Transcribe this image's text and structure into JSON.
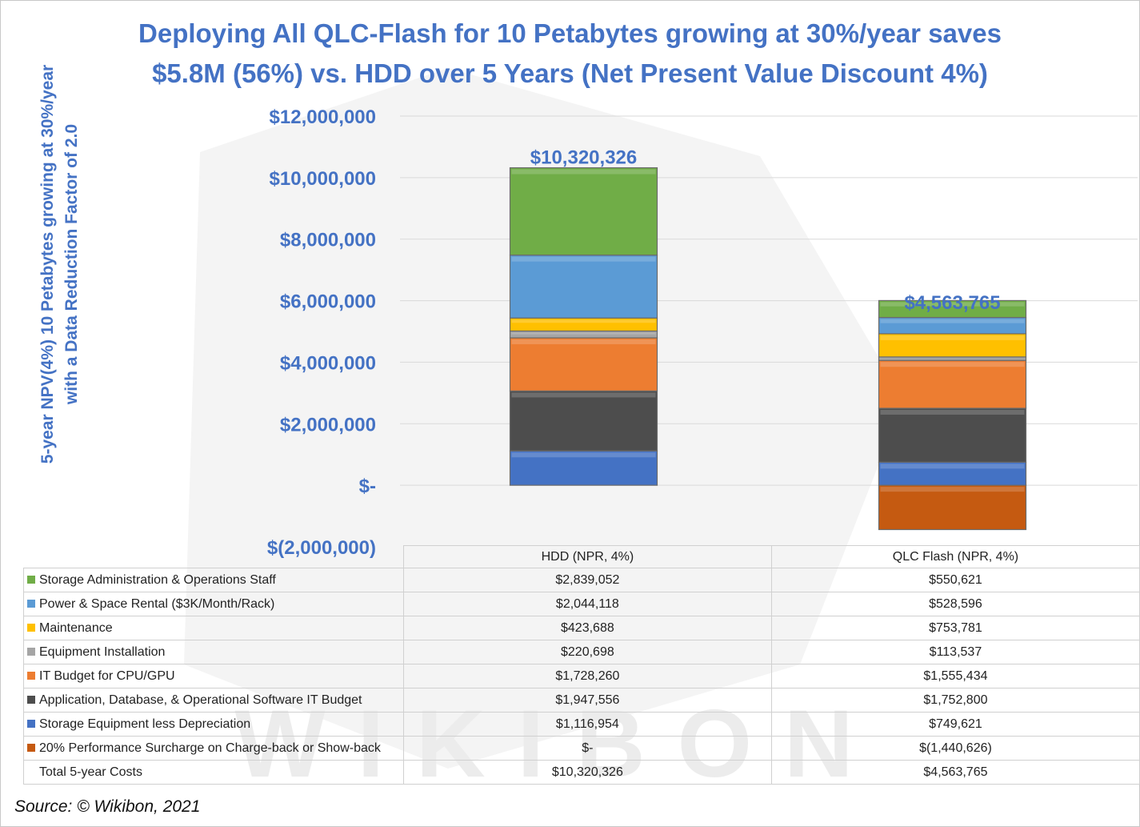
{
  "title_line1": "Deploying All QLC-Flash for 10 Petabytes growing at 30%/year saves",
  "title_line2": "$5.8M (56%) vs. HDD over 5 Years  (Net Present Value Discount 4%)",
  "source": "Source: © Wikibon, 2021",
  "watermark_text": "WIKIBON",
  "chart_data": {
    "type": "bar",
    "stacked": true,
    "title": "Deploying All QLC-Flash for 10 Petabytes growing at 30%/year saves $5.8M (56%) vs. HDD over 5 Years  (Net Present Value Discount 4%)",
    "ylabel_line1": "5-year NPV(4%) 10 Petabytes growing at 30%/year",
    "ylabel_line2": "with a Data Reduction Factor of 2.0",
    "ylim": [
      -2000000,
      12000000
    ],
    "yticks": [
      12000000,
      10000000,
      8000000,
      6000000,
      4000000,
      2000000,
      0,
      -2000000
    ],
    "ytick_labels": [
      "$12,000,000",
      "$10,000,000",
      "$8,000,000",
      "$6,000,000",
      "$4,000,000",
      "$2,000,000",
      "$-",
      "$(2,000,000)"
    ],
    "categories": [
      "HDD (NPR, 4%)",
      "QLC Flash (NPR, 4%)"
    ],
    "totals": [
      10320326,
      4563765
    ],
    "total_labels": [
      "$10,320,326",
      "$4,563,765"
    ],
    "series": [
      {
        "name": "Storage Equipment less Depreciation",
        "color": "#4472c4",
        "values": [
          1116954,
          749621
        ],
        "labels": [
          "$1,116,954",
          "$749,621"
        ]
      },
      {
        "name": "Application, Database, & Operational Software IT Budget",
        "color": "#4d4d4d",
        "values": [
          1947556,
          1752800
        ],
        "labels": [
          "$1,947,556",
          "$1,752,800"
        ]
      },
      {
        "name": "IT Budget for CPU/GPU",
        "color": "#ed7d31",
        "values": [
          1728260,
          1555434
        ],
        "labels": [
          "$1,728,260",
          "$1,555,434"
        ]
      },
      {
        "name": "Equipment Installation",
        "color": "#a5a5a5",
        "values": [
          220698,
          113537
        ],
        "labels": [
          "$220,698",
          "$113,537"
        ]
      },
      {
        "name": "Maintenance",
        "color": "#ffc000",
        "values": [
          423688,
          753781
        ],
        "labels": [
          "$423,688",
          "$753,781"
        ]
      },
      {
        "name": "Power & Space Rental ($3K/Month/Rack)",
        "color": "#5b9bd5",
        "values": [
          2044118,
          528596
        ],
        "labels": [
          "$2,044,118",
          "$528,596"
        ]
      },
      {
        "name": "Storage Administration & Operations Staff",
        "color": "#70ad47",
        "values": [
          2839052,
          550621
        ],
        "labels": [
          "$2,839,052",
          "$550,621"
        ]
      },
      {
        "name": "20% Performance Surcharge on Charge-back or Show-back",
        "color": "#c55a11",
        "values": [
          0,
          -1440626
        ],
        "labels": [
          "$-",
          "$(1,440,626)"
        ]
      }
    ],
    "table_order": [
      6,
      5,
      4,
      3,
      2,
      1,
      0,
      7
    ],
    "total_row_label": "Total 5-year Costs",
    "total_row_values": [
      "$10,320,326",
      "$4,563,765"
    ]
  }
}
